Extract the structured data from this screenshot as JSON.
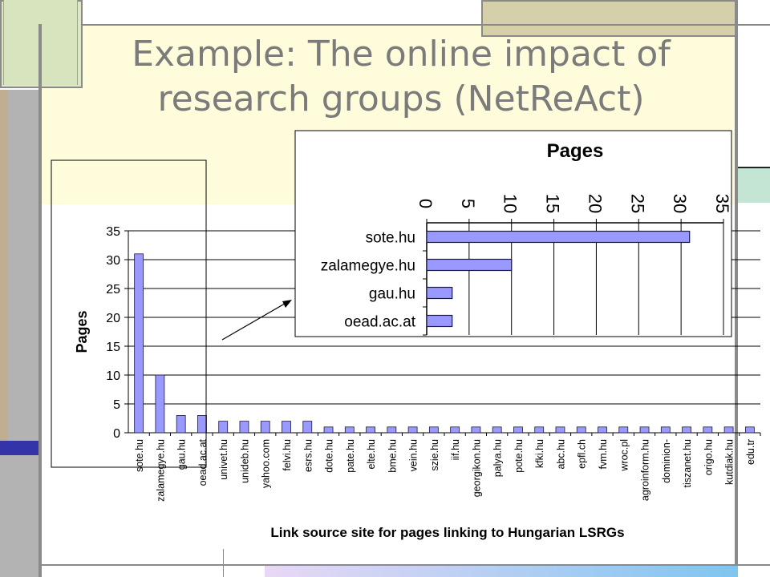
{
  "slide": {
    "title_line1": "Example: The online impact of",
    "title_line2": "research groups (NetReAct)",
    "colors": {
      "title": "#7b7b7b",
      "bar_fill": "#9999ff",
      "bar_stroke": "#1a1a3a"
    }
  },
  "chart_data": [
    {
      "type": "bar",
      "orientation": "vertical",
      "categories": [
        "sote.hu",
        "zalamegye.hu",
        "gau.hu",
        "oead.ac.at",
        "univet.hu",
        "unideb.hu",
        "yahoo.com",
        "felvi.hu",
        "esrs.hu",
        "dote.hu",
        "pate.hu",
        "elte.hu",
        "bme.hu",
        "vein.hu",
        "szie.hu",
        "iif.hu",
        "georgikon.hu",
        "palya.hu",
        "pote.hu",
        "kfki.hu",
        "abc.hu",
        "epfl.ch",
        "fvm.hu",
        "wroc.pl",
        "agroinform.hu",
        "dominion-",
        "tiszanet.hu",
        "origo.hu",
        "kutdiak.hu",
        "edu.tr"
      ],
      "values": [
        31,
        10,
        3,
        3,
        2,
        2,
        2,
        2,
        2,
        1,
        1,
        1,
        1,
        1,
        1,
        1,
        1,
        1,
        1,
        1,
        1,
        1,
        1,
        1,
        1,
        1,
        1,
        1,
        1,
        1
      ],
      "xlabel": "Link source site for pages linking to Hungarian LSRGs",
      "ylabel": "Pages",
      "ylim": [
        0,
        35
      ],
      "yticks": [
        0,
        5,
        10,
        15,
        20,
        25,
        30,
        35
      ],
      "grid": true
    },
    {
      "type": "bar",
      "orientation": "horizontal",
      "categories": [
        "sote.hu",
        "zalamegye.hu",
        "gau.hu",
        "oead.ac.at"
      ],
      "values": [
        31,
        10,
        3,
        3
      ],
      "title": "Pages",
      "xlim": [
        0,
        35
      ],
      "xticks": [
        0,
        5,
        10,
        15,
        20,
        25,
        30,
        35
      ],
      "grid": true
    }
  ]
}
